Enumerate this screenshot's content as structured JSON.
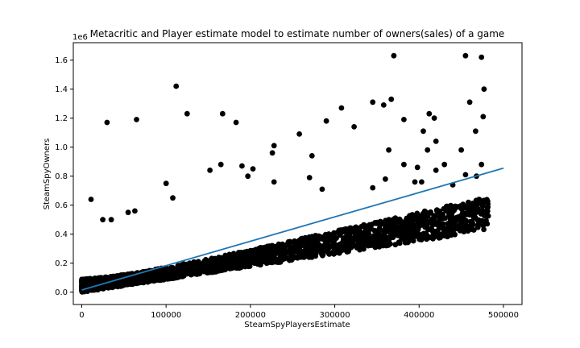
{
  "chart_data": {
    "type": "scatter",
    "title": "Metacritic and Player estimate model to estimate number of owners(sales) of a game",
    "xlabel": "SteamSpyPlayersEstimate",
    "ylabel": "SteamSpyOwners",
    "y_offset_label": "1e6",
    "xlim": [
      -10000,
      522000
    ],
    "ylim": [
      -0.085,
      1.72
    ],
    "x_ticks": [
      0,
      100000,
      200000,
      300000,
      400000,
      500000
    ],
    "x_tick_labels": [
      "0",
      "100000",
      "200000",
      "300000",
      "400000",
      "500000"
    ],
    "y_ticks": [
      0.0,
      0.2,
      0.4,
      0.6,
      0.8,
      1.0,
      1.2,
      1.4,
      1.6
    ],
    "y_tick_labels": [
      "0.0",
      "0.2",
      "0.4",
      "0.6",
      "0.8",
      "1.0",
      "1.2",
      "1.4",
      "1.6"
    ],
    "grid": false,
    "series": [
      {
        "kind": "scatter",
        "color": "#000000",
        "points": [
          [
            30000,
            1.17
          ],
          [
            65000,
            1.19
          ],
          [
            112000,
            1.42
          ],
          [
            125000,
            1.23
          ],
          [
            167000,
            1.23
          ],
          [
            183000,
            1.17
          ],
          [
            152000,
            0.84
          ],
          [
            190000,
            0.87
          ],
          [
            197000,
            0.8
          ],
          [
            203000,
            0.85
          ],
          [
            228000,
            1.01
          ],
          [
            226000,
            0.96
          ],
          [
            258000,
            1.09
          ],
          [
            273000,
            0.94
          ],
          [
            290000,
            1.18
          ],
          [
            308000,
            1.27
          ],
          [
            323000,
            1.14
          ],
          [
            345000,
            1.31
          ],
          [
            358000,
            1.29
          ],
          [
            367000,
            1.33
          ],
          [
            370000,
            1.63
          ],
          [
            382000,
            1.19
          ],
          [
            405000,
            1.11
          ],
          [
            412000,
            1.23
          ],
          [
            418000,
            1.2
          ],
          [
            420000,
            1.04
          ],
          [
            455000,
            1.63
          ],
          [
            474000,
            1.62
          ],
          [
            477000,
            1.4
          ],
          [
            460000,
            1.31
          ],
          [
            467000,
            1.11
          ],
          [
            476000,
            1.21
          ],
          [
            450000,
            0.98
          ],
          [
            474000,
            0.88
          ],
          [
            364000,
            0.98
          ],
          [
            382000,
            0.88
          ],
          [
            398000,
            0.86
          ],
          [
            403000,
            0.76
          ],
          [
            410000,
            0.98
          ],
          [
            430000,
            0.88
          ],
          [
            11000,
            0.64
          ],
          [
            25000,
            0.5
          ],
          [
            35000,
            0.5
          ],
          [
            55000,
            0.55
          ],
          [
            63000,
            0.56
          ],
          [
            100000,
            0.75
          ],
          [
            108000,
            0.65
          ],
          [
            165000,
            0.88
          ],
          [
            228000,
            0.76
          ],
          [
            270000,
            0.79
          ],
          [
            285000,
            0.71
          ],
          [
            345000,
            0.72
          ],
          [
            360000,
            0.78
          ],
          [
            395000,
            0.76
          ],
          [
            420000,
            0.84
          ],
          [
            440000,
            0.74
          ],
          [
            455000,
            0.81
          ],
          [
            468000,
            0.8
          ],
          [
            480000,
            0.54
          ],
          [
            447000,
            0.46
          ]
        ],
        "band": {
          "x_range": [
            0,
            482000
          ],
          "lower_slope": 8.8e-07,
          "upper_slope": 1.3e-06,
          "count": 2400
        }
      },
      {
        "kind": "line",
        "color": "#1f77b4",
        "points": [
          [
            0,
            0.015
          ],
          [
            500000,
            0.855
          ]
        ]
      }
    ]
  }
}
